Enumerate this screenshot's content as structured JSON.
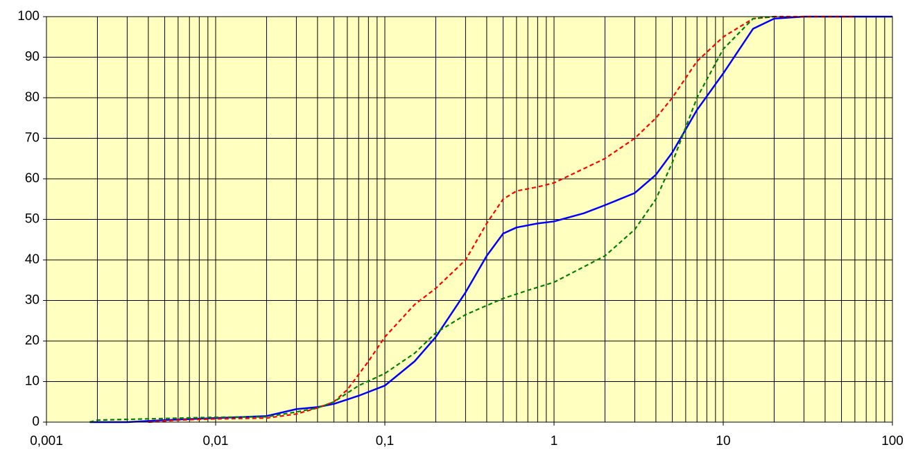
{
  "chart_data": {
    "type": "line",
    "log_x": true,
    "grid": true,
    "minor_grid": true,
    "background": "#ffffc0",
    "xlim": [
      0.001,
      100
    ],
    "xticks": [
      {
        "value": 0.001,
        "label": "0,001"
      },
      {
        "value": 0.01,
        "label": "0,01"
      },
      {
        "value": 0.1,
        "label": "0,1"
      },
      1,
      10,
      100
    ],
    "ylim": [
      0,
      100
    ],
    "yticks": [
      0,
      10,
      20,
      30,
      40,
      50,
      60,
      70,
      80,
      90,
      100
    ],
    "series": [
      {
        "color": "#0000ff",
        "dash": false,
        "x": [
          0.0018,
          0.003,
          0.005,
          0.01,
          0.02,
          0.03,
          0.04,
          0.05,
          0.07,
          0.1,
          0.15,
          0.2,
          0.3,
          0.4,
          0.5,
          0.6,
          0.8,
          1,
          1.5,
          2,
          3,
          4,
          5,
          7,
          10,
          15,
          20,
          30,
          100
        ],
        "values": [
          0,
          0,
          0.5,
          1,
          1.5,
          3.2,
          3.7,
          4.5,
          6.5,
          9,
          15,
          21,
          32,
          41,
          46.5,
          48,
          49,
          49.5,
          51.5,
          53.5,
          56.5,
          61,
          66.5,
          77,
          86,
          97,
          99.5,
          100,
          100
        ]
      },
      {
        "color": "#ff0000",
        "dash": true,
        "x": [
          0.004,
          0.006,
          0.01,
          0.02,
          0.03,
          0.04,
          0.05,
          0.06,
          0.08,
          0.1,
          0.15,
          0.2,
          0.3,
          0.4,
          0.5,
          0.6,
          0.8,
          1,
          2,
          3,
          4,
          5,
          7,
          10,
          15,
          20,
          60
        ],
        "values": [
          0,
          0.5,
          0.8,
          1,
          2,
          3.5,
          5,
          8,
          15,
          21,
          29,
          33,
          40,
          49,
          55,
          57,
          58,
          59,
          65,
          70,
          75,
          80,
          89,
          95,
          99.5,
          100,
          100
        ]
      },
      {
        "color": "#008000",
        "dash": true,
        "x": [
          0.0018,
          0.002,
          0.004,
          0.01,
          0.02,
          0.03,
          0.04,
          0.05,
          0.07,
          0.1,
          0.15,
          0.2,
          0.3,
          0.5,
          0.7,
          1,
          2,
          3,
          4,
          5,
          7,
          10,
          15,
          20
        ],
        "values": [
          0,
          0.5,
          0.8,
          1.2,
          1.3,
          2.5,
          3.5,
          5,
          9,
          12,
          17,
          22,
          26.5,
          30.5,
          32.5,
          34.5,
          41,
          47.5,
          55,
          64,
          80,
          92,
          99.5,
          100
        ]
      }
    ]
  }
}
